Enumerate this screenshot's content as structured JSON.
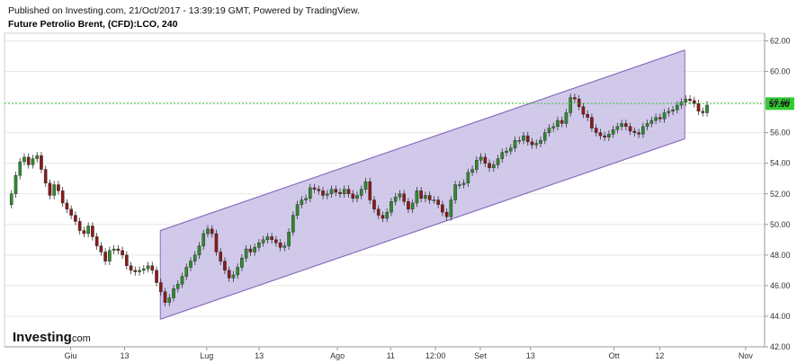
{
  "header": {
    "published": "Published on Investing.com, 21/Oct/2017 - 13:39:19 GMT, Powered by TradingView.",
    "title": "Future Petrolio Brent, (CFD):LCO, 240"
  },
  "brand": {
    "name": "Investing",
    "suffix": ".com"
  },
  "colors": {
    "up": "#2e8b2e",
    "down": "#8b1a1a",
    "channel_fill": "#c9bfe6",
    "channel_line": "#8a6bbf",
    "price_line": "#33cc33",
    "grid": "#e6e6e6"
  },
  "chart_data": {
    "type": "candlestick",
    "y_axis": {
      "ticks": [
        "62.00",
        "60.00",
        "58.00",
        "56.00",
        "54.00",
        "52.00",
        "50.00",
        "48.00",
        "46.00",
        "44.00",
        "42.00"
      ],
      "ylim": [
        42,
        62.5
      ],
      "position": "right"
    },
    "x_axis": {
      "ticks": [
        "Giu",
        "13",
        "Lug",
        "13",
        "Ago",
        "11",
        "12:00",
        "Set",
        "13",
        "Ott",
        "12",
        "Nov"
      ]
    },
    "current_price": {
      "value": 57.9,
      "label": "57.90"
    },
    "channel": {
      "upper": [
        [
          0.205,
          49.6
        ],
        [
          0.895,
          61.4
        ]
      ],
      "lower": [
        [
          0.205,
          43.8
        ],
        [
          0.895,
          55.6
        ]
      ]
    },
    "series": [
      {
        "values": [
          51.3,
          52.0,
          53.2,
          54.1,
          54.4,
          53.9,
          54.3,
          54.5,
          53.6,
          52.7,
          51.9,
          52.6,
          52.2,
          51.4,
          51.0,
          50.6,
          50.2,
          49.6,
          49.4,
          49.9,
          49.2,
          48.6,
          48.2,
          47.6,
          48.3,
          48.4,
          48.3,
          48.0,
          47.3,
          47.0,
          46.9,
          47.0,
          47.1,
          47.3,
          47.0,
          46.2,
          45.6,
          44.9,
          45.2,
          45.8,
          46.1,
          46.6,
          47.2,
          47.6,
          48.0,
          48.6,
          49.4,
          49.7,
          49.4,
          48.2,
          47.6,
          47.0,
          46.5,
          46.7,
          47.2,
          47.8,
          48.4,
          48.2,
          48.5,
          48.8,
          49.0,
          49.2,
          49.0,
          48.8,
          48.5,
          48.6,
          49.5,
          50.6,
          51.3,
          51.6,
          51.7,
          52.4,
          52.3,
          52.2,
          51.9,
          52.0,
          52.3,
          52.1,
          52.0,
          52.3,
          52.0,
          51.7,
          51.9,
          52.3,
          52.8,
          51.6,
          51.0,
          50.6,
          50.4,
          50.8,
          51.5,
          51.8,
          52.0,
          51.5,
          51.0,
          51.4,
          52.2,
          51.7,
          51.9,
          51.6,
          51.6,
          51.3,
          50.8,
          50.5,
          51.6,
          52.6,
          52.6,
          52.7,
          53.4,
          53.6,
          54.2,
          54.4,
          54.0,
          53.7,
          53.9,
          54.3,
          54.7,
          54.8,
          55.0,
          55.5,
          55.5,
          55.8,
          55.4,
          55.2,
          55.3,
          55.5,
          56.0,
          56.3,
          56.4,
          56.8,
          56.6,
          57.3,
          58.3,
          58.2,
          57.7,
          57.2,
          57.0,
          56.3,
          56.0,
          55.8,
          55.7,
          55.9,
          56.2,
          56.4,
          56.6,
          56.4,
          56.1,
          56.0,
          55.9,
          56.4,
          56.6,
          56.8,
          57.0,
          56.9,
          57.3,
          57.4,
          57.5,
          57.8,
          58.0,
          58.2,
          58.1,
          57.9,
          57.4,
          57.3,
          57.8
        ]
      }
    ]
  }
}
